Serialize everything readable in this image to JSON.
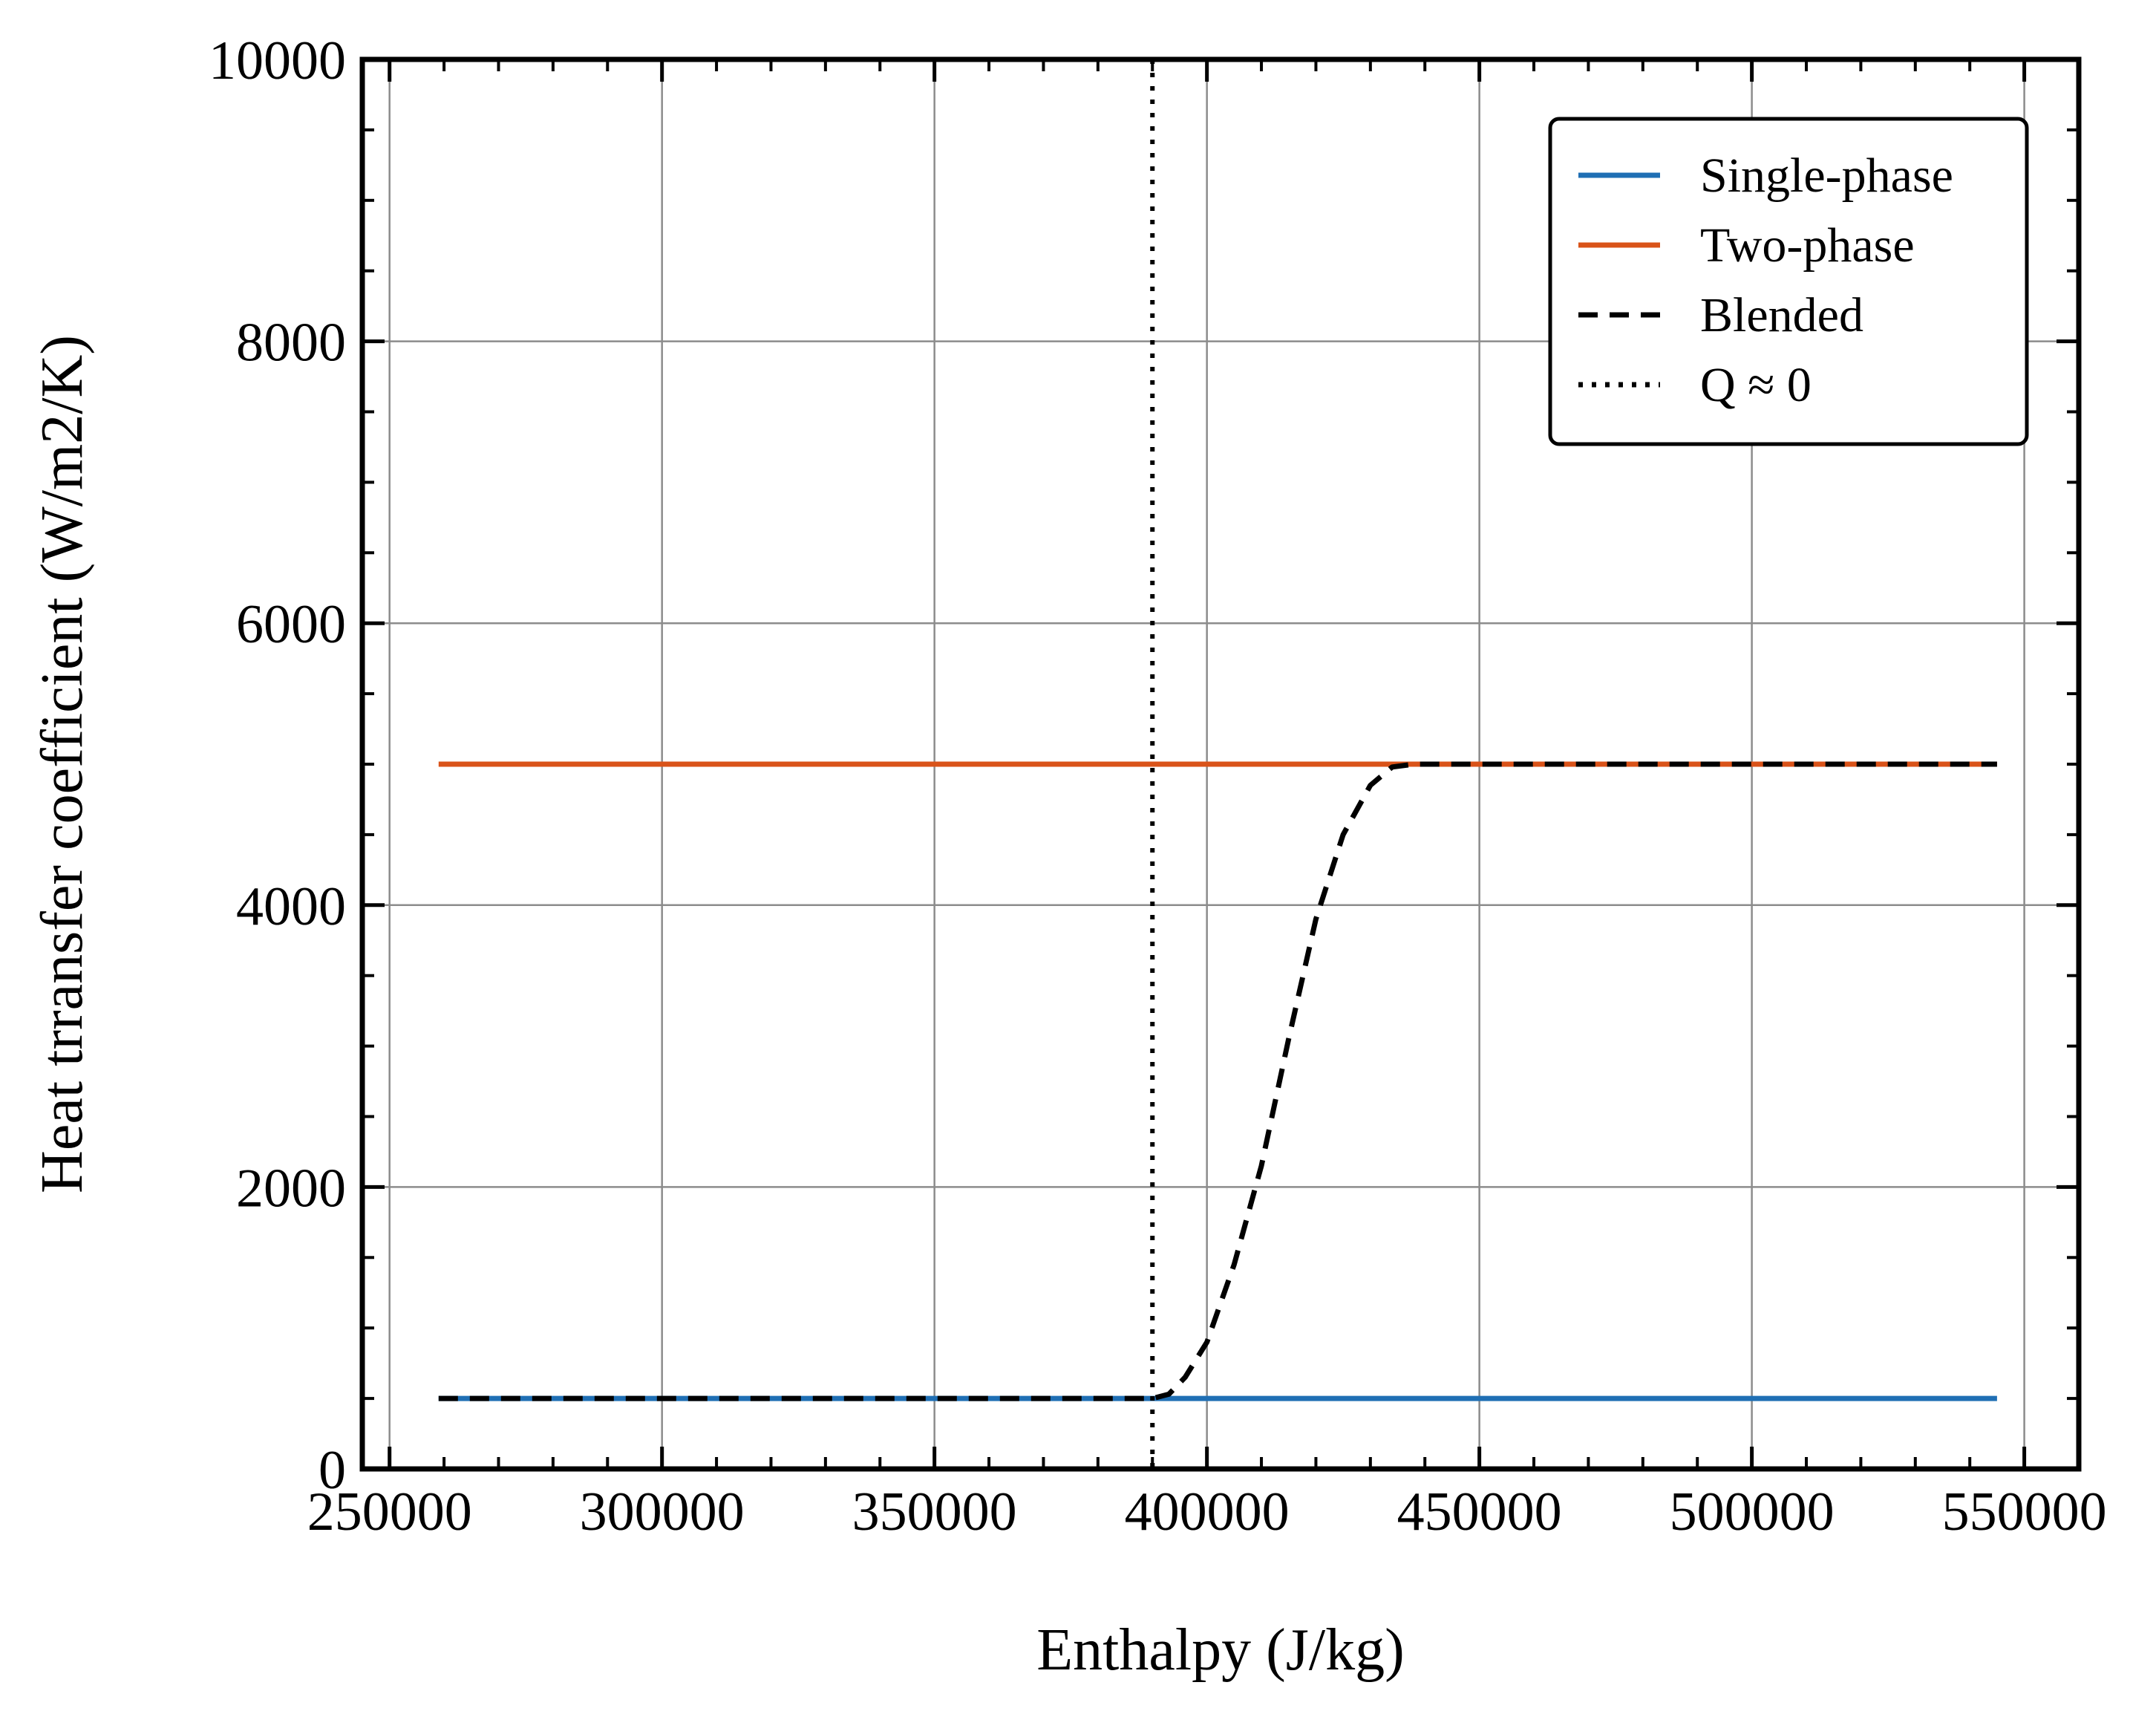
{
  "chart_data": {
    "type": "line",
    "title": "",
    "xlabel": "Enthalpy (J/kg)",
    "ylabel": "Heat trransfer coefficient (W/m2/K)",
    "xlim": [
      245000,
      560000
    ],
    "ylim": [
      0,
      10000
    ],
    "xticks": [
      250000,
      300000,
      350000,
      400000,
      450000,
      500000,
      550000
    ],
    "yticks": [
      0,
      2000,
      4000,
      6000,
      8000,
      10000
    ],
    "xtick_labels": [
      "250000",
      "300000",
      "350000",
      "400000",
      "450000",
      "500000",
      "550000"
    ],
    "ytick_labels": [
      "0",
      "2000",
      "4000",
      "6000",
      "8000",
      "10000"
    ],
    "grid": true,
    "legend_position": "top-right",
    "series": [
      {
        "name": "Single-phase",
        "color": "#1f6fb4",
        "style": "solid",
        "x": [
          259000,
          545000
        ],
        "y": [
          500,
          500
        ]
      },
      {
        "name": "Two-phase",
        "color": "#d95319",
        "style": "solid",
        "x": [
          259000,
          545000
        ],
        "y": [
          5000,
          5000
        ]
      },
      {
        "name": "Blended",
        "color": "#000000",
        "style": "dashed",
        "x": [
          259000,
          390000,
          393000,
          396000,
          400000,
          405000,
          410000,
          415000,
          420000,
          425000,
          430000,
          434000,
          438000,
          545000
        ],
        "y": [
          500,
          500,
          530,
          650,
          900,
          1450,
          2150,
          3050,
          3900,
          4500,
          4850,
          4980,
          5000,
          5000
        ]
      },
      {
        "name": "Q ≈ 0",
        "color": "#000000",
        "style": "dotted",
        "vertical_line_x": 390000
      }
    ]
  }
}
